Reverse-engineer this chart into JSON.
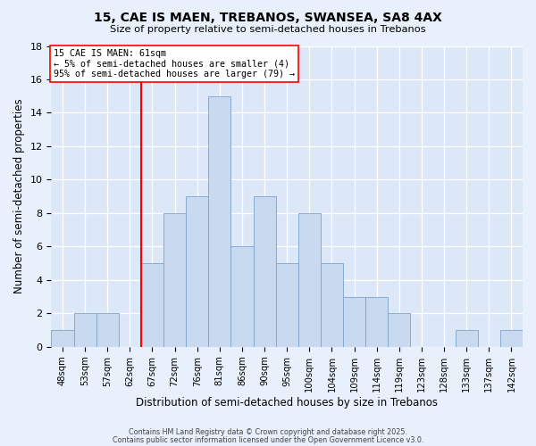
{
  "title": "15, CAE IS MAEN, TREBANOS, SWANSEA, SA8 4AX",
  "subtitle": "Size of property relative to semi-detached houses in Trebanos",
  "xlabel": "Distribution of semi-detached houses by size in Trebanos",
  "ylabel": "Number of semi-detached properties",
  "bin_labels": [
    "48sqm",
    "53sqm",
    "57sqm",
    "62sqm",
    "67sqm",
    "72sqm",
    "76sqm",
    "81sqm",
    "86sqm",
    "90sqm",
    "95sqm",
    "100sqm",
    "104sqm",
    "109sqm",
    "114sqm",
    "119sqm",
    "123sqm",
    "128sqm",
    "133sqm",
    "137sqm",
    "142sqm"
  ],
  "bar_heights": [
    1,
    2,
    2,
    0,
    5,
    8,
    9,
    15,
    6,
    9,
    5,
    8,
    5,
    3,
    3,
    2,
    0,
    0,
    1,
    0,
    1
  ],
  "bar_color": "#c9d9f0",
  "bar_edge_color": "#7ba3cc",
  "vline_x": 3,
  "vline_label": "15 CAE IS MAEN: 61sqm",
  "annotation_line1": "← 5% of semi-detached houses are smaller (4)",
  "annotation_line2": "95% of semi-detached houses are larger (79) →",
  "ylim": [
    0,
    18
  ],
  "yticks": [
    0,
    2,
    4,
    6,
    8,
    10,
    12,
    14,
    16,
    18
  ],
  "bg_color": "#e8f0fb",
  "plot_bg_color": "#dce8f8",
  "footer1": "Contains HM Land Registry data © Crown copyright and database right 2025.",
  "footer2": "Contains public sector information licensed under the Open Government Licence v3.0."
}
